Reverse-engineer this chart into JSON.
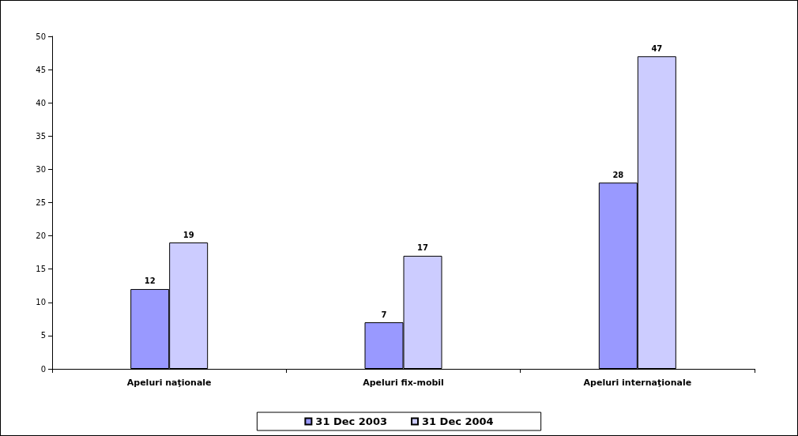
{
  "chart_data": {
    "type": "bar",
    "categories": [
      "Apeluri naţionale",
      "Apeluri fix-mobil",
      "Apeluri internaţionale"
    ],
    "series": [
      {
        "name": "31 Dec 2003",
        "color": "#9999ff",
        "values": [
          12,
          7,
          28
        ]
      },
      {
        "name": "31 Dec 2004",
        "color": "#ccccff",
        "values": [
          19,
          17,
          47
        ]
      }
    ],
    "ylim": [
      0,
      50
    ],
    "yticks": [
      0,
      5,
      10,
      15,
      20,
      25,
      30,
      35,
      40,
      45,
      50
    ],
    "data_labels": true,
    "grid": false,
    "legend": "bottom"
  }
}
